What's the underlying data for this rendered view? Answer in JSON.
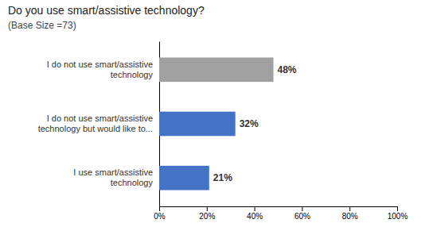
{
  "chart_data": {
    "type": "bar",
    "orientation": "horizontal",
    "title": "Do you use smart/assistive technology?",
    "subtitle": "(Base Size =73)",
    "categories": [
      "I use smart/assistive\ntechnology",
      "I do not use smart/assistive\ntechnology but would like to...",
      "I do not use smart/assistive\ntechnology"
    ],
    "values": [
      21,
      32,
      48
    ],
    "value_labels": [
      "21%",
      "32%",
      "48%"
    ],
    "colors": [
      "#4472c4",
      "#4472c4",
      "#a0a0a0"
    ],
    "xlim": [
      0,
      100
    ],
    "xticks": [
      {
        "value": 0,
        "label": "0%"
      },
      {
        "value": 20,
        "label": "20%"
      },
      {
        "value": 40,
        "label": "40%"
      },
      {
        "value": 60,
        "label": "60%"
      },
      {
        "value": 80,
        "label": "80%"
      },
      {
        "value": 100,
        "label": "100%"
      }
    ],
    "grid": false,
    "data_labels": true
  }
}
